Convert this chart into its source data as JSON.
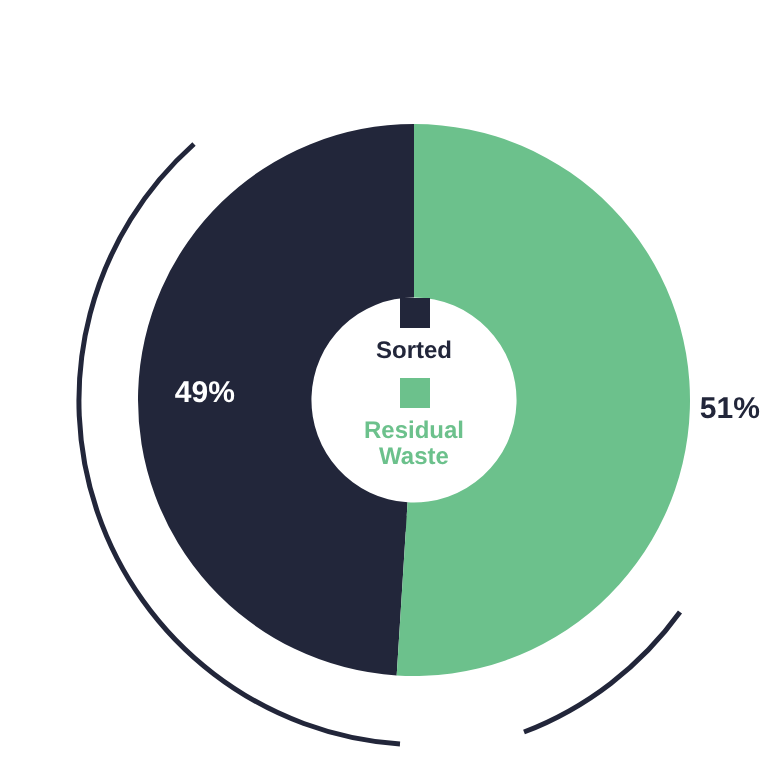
{
  "chart_data": {
    "type": "donut",
    "categories": [
      "Sorted",
      "Residual Waste"
    ],
    "values": [
      49,
      51
    ],
    "colors": [
      "#22263a",
      "#6cc18c"
    ],
    "value_labels": [
      "49%",
      "51%"
    ],
    "legend": "center"
  }
}
